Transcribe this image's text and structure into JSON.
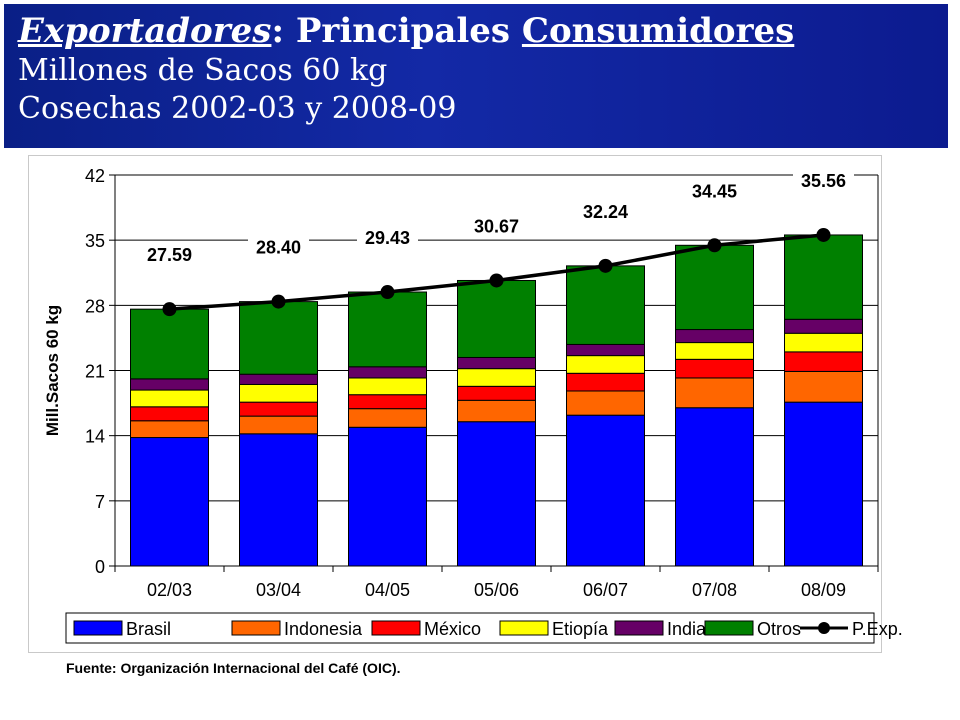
{
  "header": {
    "title_italic": "Exportadores",
    "title_colon": ":",
    "title_rest_a": "Principales",
    "title_rest_b": "Consumidores",
    "subtitle1": "Millones de Sacos 60 kg",
    "subtitle2": "Cosechas 2002-03 y 2008-09"
  },
  "source": "Fuente: Organización Internacional del Café (OIC).",
  "chart_data": {
    "type": "bar",
    "stacked": true,
    "categories": [
      "02/03",
      "03/04",
      "04/05",
      "05/06",
      "06/07",
      "07/08",
      "08/09"
    ],
    "ylabel": "Mill.Sacos 60 kg",
    "xlabel": "",
    "ylim": [
      0,
      42
    ],
    "yticks": [
      0,
      7,
      14,
      21,
      28,
      35,
      42
    ],
    "grid": "horizontal",
    "legend_position": "bottom",
    "series": [
      {
        "name": "Brasil",
        "color": "#0000ff",
        "values": [
          13.8,
          14.2,
          14.9,
          15.5,
          16.2,
          17.0,
          17.6
        ]
      },
      {
        "name": "Indonesia",
        "color": "#ff6600",
        "values": [
          1.8,
          1.9,
          2.0,
          2.3,
          2.6,
          3.2,
          3.3
        ]
      },
      {
        "name": "México",
        "color": "#ff0000",
        "values": [
          1.5,
          1.5,
          1.5,
          1.5,
          1.9,
          2.0,
          2.1
        ]
      },
      {
        "name": "Etiopía",
        "color": "#ffff00",
        "values": [
          1.8,
          1.9,
          1.8,
          1.9,
          1.9,
          1.8,
          2.0
        ]
      },
      {
        "name": "India",
        "color": "#660066",
        "values": [
          1.2,
          1.1,
          1.2,
          1.2,
          1.2,
          1.4,
          1.5
        ]
      },
      {
        "name": "Otros",
        "color": "#008000",
        "values": [
          7.49,
          7.8,
          8.03,
          8.27,
          8.44,
          9.05,
          9.06
        ]
      }
    ],
    "line_series": {
      "name": "P.Exp.",
      "color": "#000000",
      "values": [
        27.59,
        28.4,
        29.43,
        30.67,
        32.24,
        34.45,
        35.56
      ],
      "labels": [
        "27.59",
        "28.40",
        "29.43",
        "30.67",
        "32.24",
        "34.45",
        "35.56"
      ]
    }
  }
}
